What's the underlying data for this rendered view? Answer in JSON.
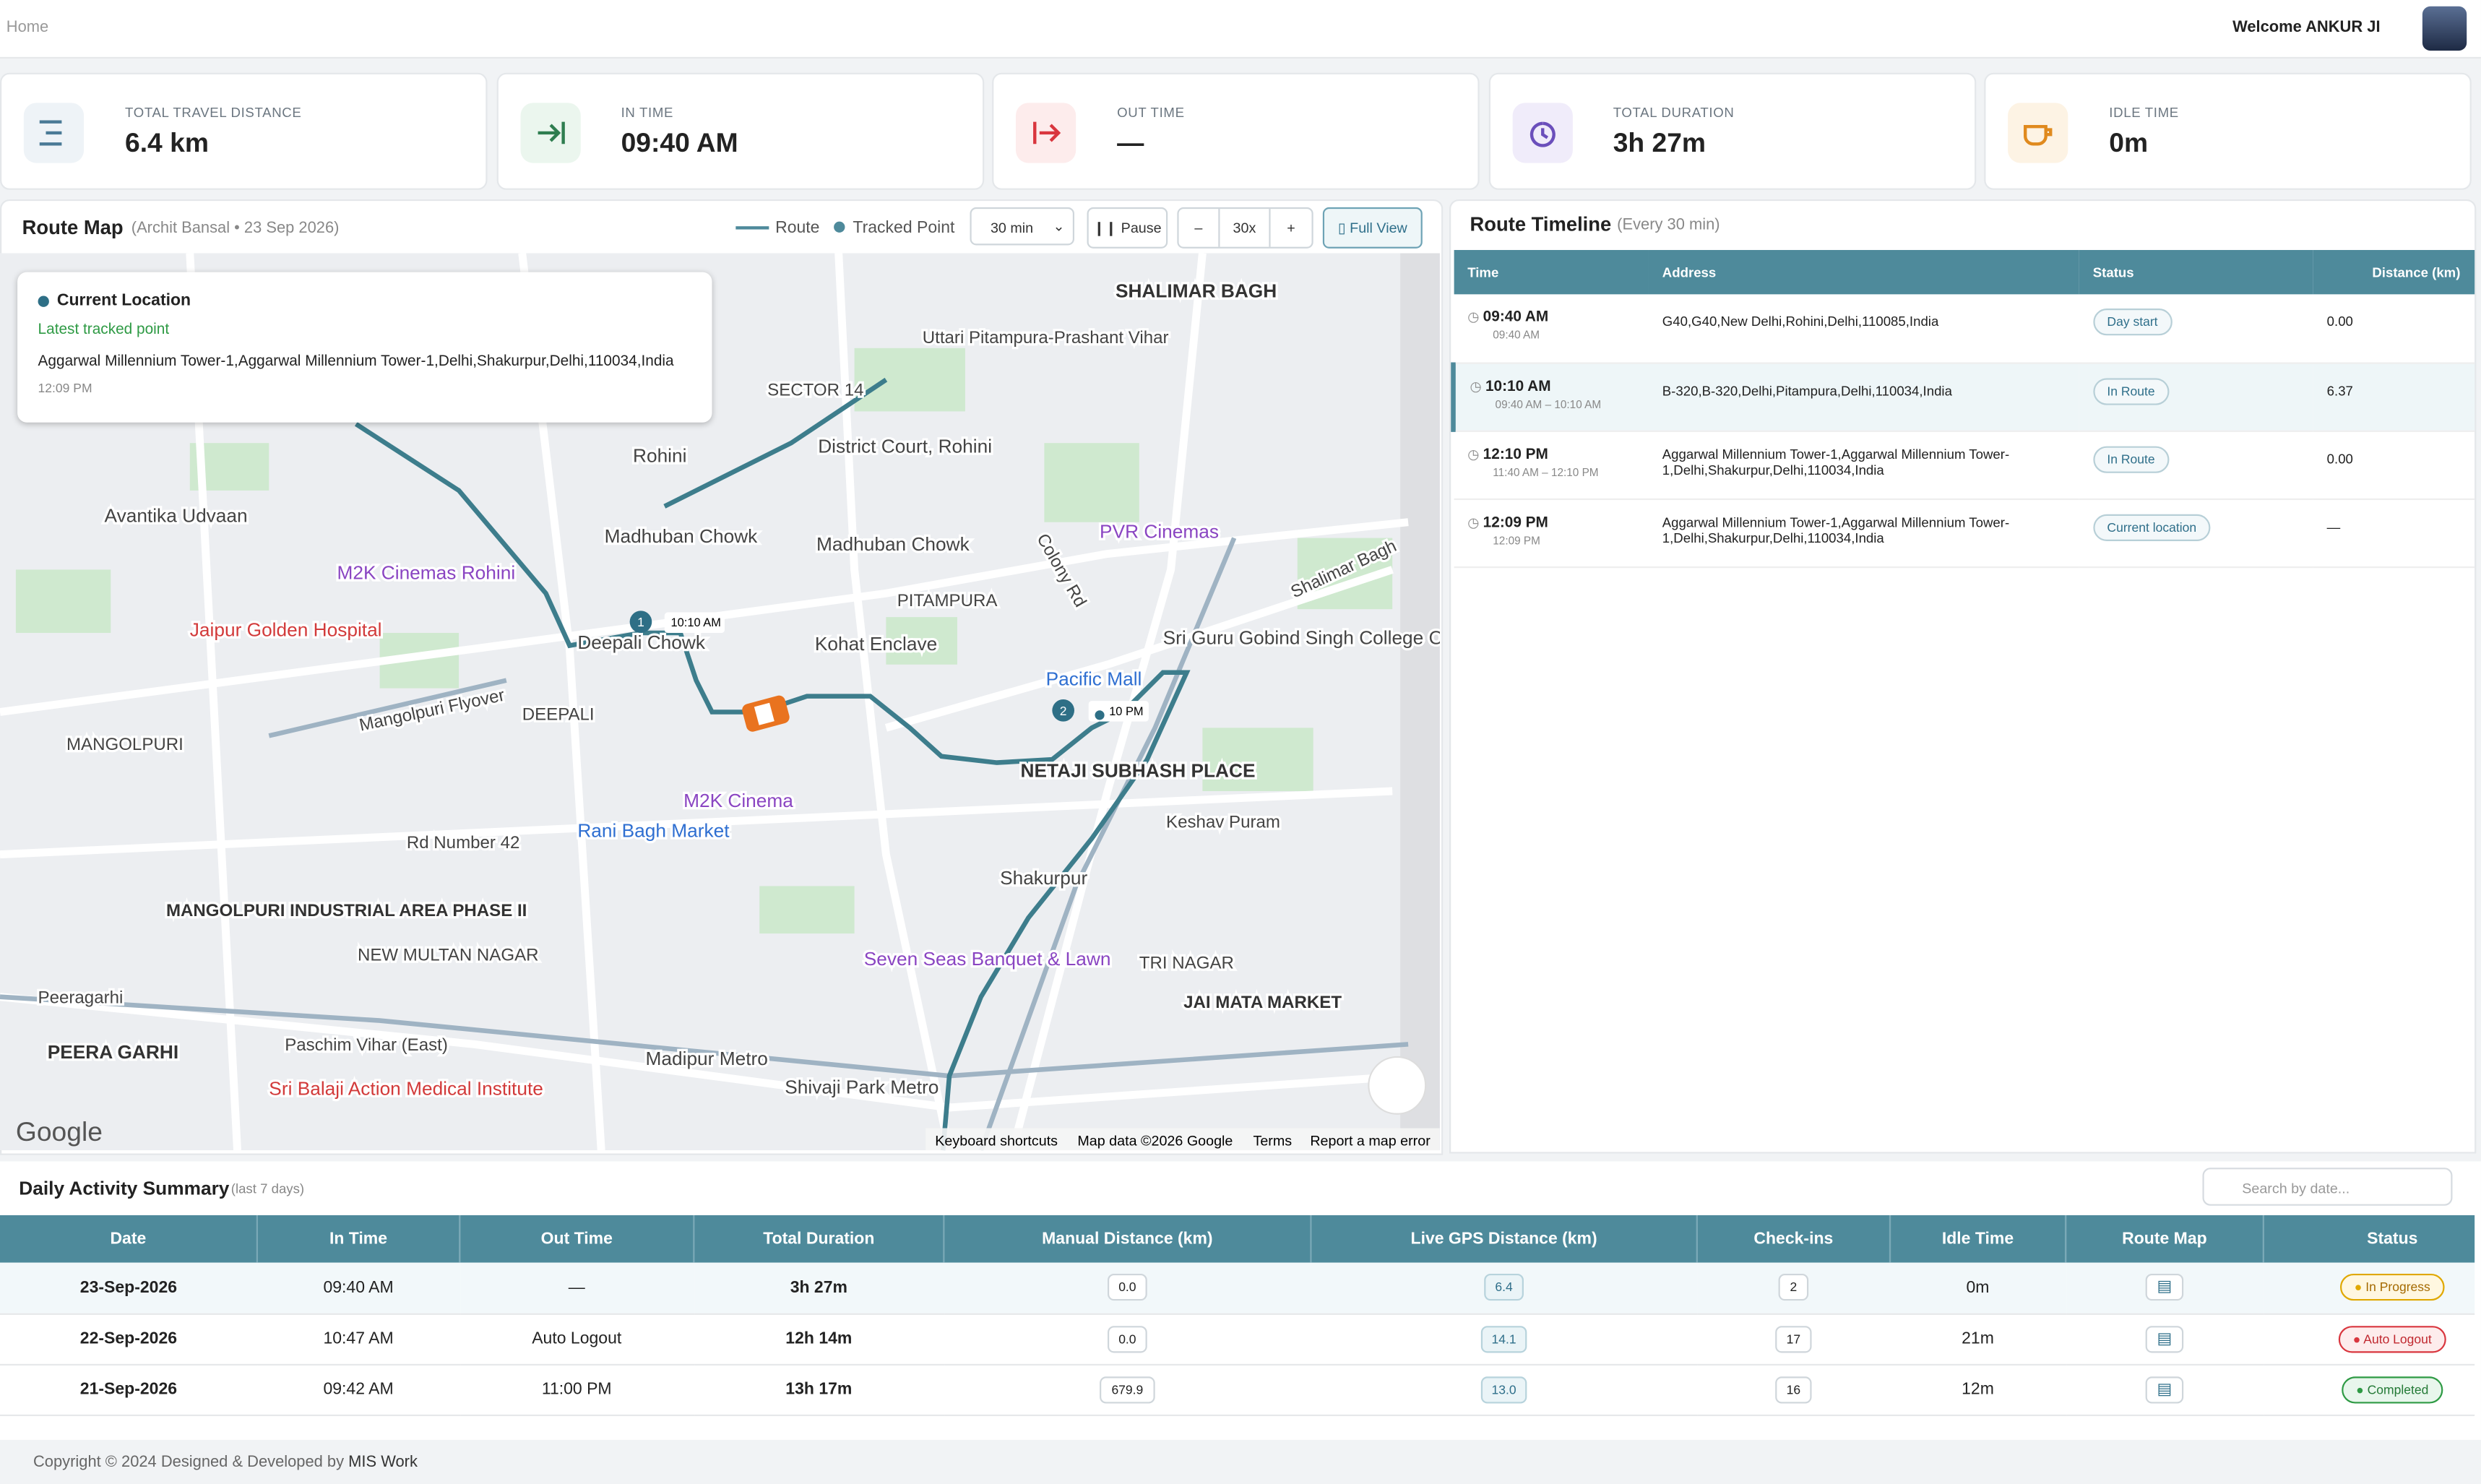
{
  "header": {
    "breadcrumb": "Home",
    "welcome": "Welcome ANKUR JI"
  },
  "stats": [
    {
      "label": "TOTAL TRAVEL DISTANCE",
      "value": "6.4 km"
    },
    {
      "label": "IN TIME",
      "value": "09:40 AM"
    },
    {
      "label": "OUT TIME",
      "value": "—"
    },
    {
      "label": "TOTAL DURATION",
      "value": "3h 27m"
    },
    {
      "label": "IDLE TIME",
      "value": "0m"
    }
  ],
  "route_map": {
    "title": "Route Map",
    "subtitle": "(Archit Bansal • 23 Sep 2026)",
    "legend_route": "Route",
    "legend_point": "Tracked Point",
    "interval": "30 min",
    "pause": "Pause",
    "minus": "–",
    "speed": "30x",
    "plus": "+",
    "full_view": "Full View",
    "popup": {
      "title": "Current Location",
      "subtitle": "Latest tracked point",
      "address": "Aggarwal Millennium Tower-1,Aggarwal Millennium Tower-1,Delhi,Shakurpur,Delhi,110034,India",
      "time": "12:09 PM"
    },
    "markers": [
      "1",
      "2"
    ],
    "marker_times": [
      "10:10 AM",
      "10 PM"
    ],
    "places": [
      "SHALIMAR BAGH",
      "Uttari Pitampura-Prashant Vihar",
      "SECTOR 14",
      "District Court, Rohini",
      "Rohini",
      "Avantika Udvaan",
      "M2K Cinemas Rohini",
      "Madhuban Chowk",
      "Madhuban Chowk",
      "PVR Cinemas",
      "Jaipur Golden Hospital",
      "Sri Guru Gobind Singh College Of Commerce...",
      "PITAMPURA",
      "Kohat Enclave",
      "Deepali Chowk",
      "Pacific Mall",
      "DEEPALI",
      "NETAJI SUBHASH PLACE",
      "M2K Cinema",
      "Rani Bagh Market",
      "Keshav Puram",
      "MANGOLPURI INDUSTRIAL AREA PHASE II",
      "Shakurpur",
      "Seven Seas Banquet & Lawn",
      "TRI NAGAR",
      "JAI MATA MARKET",
      "PEERA GARHI",
      "Paschim Vihar (East)",
      "Madipur Metro",
      "Shivaji Park Metro",
      "Sri Balaji Action Medical Institute",
      "NEW MULTAN NAGAR",
      "Rd Number 42",
      "Peeragarhi",
      "Mangolpuri Flyover",
      "MANGOLPURI",
      "Colony Rd",
      "Shalimar Bagh"
    ],
    "attribution": [
      "Google",
      "Keyboard shortcuts",
      "Map data ©2026 Google",
      "Terms",
      "Report a map error"
    ]
  },
  "timeline": {
    "title": "Route Timeline",
    "subtitle": "(Every 30 min)",
    "columns": [
      "Time",
      "Address",
      "Status",
      "Distance (km)"
    ],
    "rows": [
      {
        "time": "09:40 AM",
        "range": "09:40 AM",
        "address": "G40,G40,New Delhi,Rohini,Delhi,110085,India",
        "status": "Day start",
        "distance": "0.00"
      },
      {
        "time": "10:10 AM",
        "range": "09:40 AM – 10:10 AM",
        "address": "B-320,B-320,Delhi,Pitampura,Delhi,110034,India",
        "status": "In Route",
        "distance": "6.37"
      },
      {
        "time": "12:10 PM",
        "range": "11:40 AM – 12:10 PM",
        "address": "Aggarwal Millennium Tower-1,Aggarwal Millennium Tower-1,Delhi,Shakurpur,Delhi,110034,India",
        "status": "In Route",
        "distance": "0.00"
      },
      {
        "time": "12:09 PM",
        "range": "12:09 PM",
        "address": "Aggarwal Millennium Tower-1,Aggarwal Millennium Tower-1,Delhi,Shakurpur,Delhi,110034,India",
        "status": "Current location",
        "distance": "—"
      }
    ]
  },
  "summary": {
    "title": "Daily Activity Summary",
    "subtitle": "(last 7 days)",
    "search_placeholder": "Search by date...",
    "columns": [
      "Date",
      "In Time",
      "Out Time",
      "Total Duration",
      "Manual Distance (km)",
      "Live GPS Distance (km)",
      "Check-ins",
      "Idle Time",
      "Route Map",
      "Status"
    ],
    "rows": [
      [
        "23-Sep-2026",
        "09:40 AM",
        "—",
        "3h 27m",
        "0.0",
        "6.4",
        "2",
        "0m",
        "In Progress"
      ],
      [
        "22-Sep-2026",
        "10:47 AM",
        "Auto Logout",
        "12h 14m",
        "0.0",
        "14.1",
        "17",
        "21m",
        "Auto Logout"
      ],
      [
        "21-Sep-2026",
        "09:42 AM",
        "11:00 PM",
        "13h 17m",
        "679.9",
        "13.0",
        "16",
        "12m",
        "Completed"
      ]
    ]
  },
  "footer": {
    "text": "Copyright © 2024 Designed & Developed by",
    "link": "MIS Work"
  }
}
